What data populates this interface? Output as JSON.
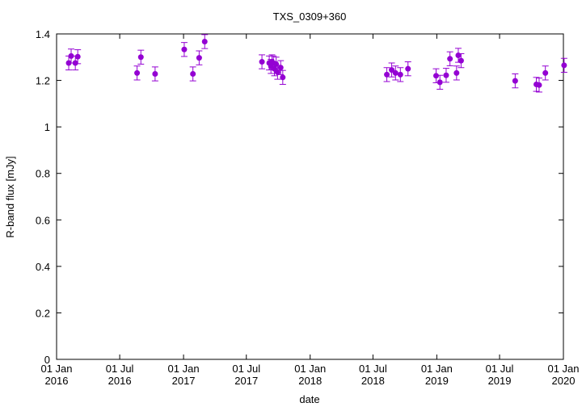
{
  "chart_data": {
    "type": "scatter",
    "title": "TXS_0309+360",
    "xlabel": "date",
    "ylabel": "R-band flux [mJy]",
    "ylim": [
      0,
      1.4
    ],
    "yticks": [
      "0",
      "0.2",
      "0.4",
      "0.6",
      "0.8",
      "1",
      "1.2",
      "1.4"
    ],
    "xlim": [
      "2016-01-01",
      "2020-01-01"
    ],
    "xticks": [
      {
        "date": "2016-01-01",
        "line1": "01 Jan",
        "line2": "2016"
      },
      {
        "date": "2016-07-01",
        "line1": "01 Jul",
        "line2": "2016"
      },
      {
        "date": "2017-01-01",
        "line1": "01 Jan",
        "line2": "2017"
      },
      {
        "date": "2017-07-01",
        "line1": "01 Jul",
        "line2": "2017"
      },
      {
        "date": "2018-01-01",
        "line1": "01 Jan",
        "line2": "2018"
      },
      {
        "date": "2018-07-01",
        "line1": "01 Jul",
        "line2": "2018"
      },
      {
        "date": "2019-01-01",
        "line1": "01 Jan",
        "line2": "2019"
      },
      {
        "date": "2019-07-01",
        "line1": "01 Jul",
        "line2": "2019"
      },
      {
        "date": "2020-01-01",
        "line1": "01 Jan",
        "line2": "2020"
      }
    ],
    "grid": false,
    "legend": "none",
    "marker_color": "#9400d3",
    "series": [
      {
        "points": [
          {
            "x": "2016-02-05",
            "y": 1.275,
            "err": 0.03
          },
          {
            "x": "2016-02-12",
            "y": 1.305,
            "err": 0.03
          },
          {
            "x": "2016-02-24",
            "y": 1.275,
            "err": 0.03
          },
          {
            "x": "2016-03-02",
            "y": 1.302,
            "err": 0.03
          },
          {
            "x": "2016-08-20",
            "y": 1.232,
            "err": 0.03
          },
          {
            "x": "2016-08-31",
            "y": 1.3,
            "err": 0.03
          },
          {
            "x": "2016-10-11",
            "y": 1.228,
            "err": 0.03
          },
          {
            "x": "2017-01-03",
            "y": 1.333,
            "err": 0.03
          },
          {
            "x": "2017-01-28",
            "y": 1.228,
            "err": 0.03
          },
          {
            "x": "2017-02-15",
            "y": 1.297,
            "err": 0.03
          },
          {
            "x": "2017-03-03",
            "y": 1.367,
            "err": 0.03
          },
          {
            "x": "2017-08-15",
            "y": 1.28,
            "err": 0.03
          },
          {
            "x": "2017-09-05",
            "y": 1.275,
            "err": 0.03
          },
          {
            "x": "2017-09-10",
            "y": 1.26,
            "err": 0.03
          },
          {
            "x": "2017-09-13",
            "y": 1.28,
            "err": 0.03
          },
          {
            "x": "2017-09-17",
            "y": 1.275,
            "err": 0.03
          },
          {
            "x": "2017-09-20",
            "y": 1.25,
            "err": 0.03
          },
          {
            "x": "2017-09-25",
            "y": 1.27,
            "err": 0.03
          },
          {
            "x": "2017-09-29",
            "y": 1.235,
            "err": 0.03
          },
          {
            "x": "2017-10-08",
            "y": 1.255,
            "err": 0.03
          },
          {
            "x": "2017-10-14",
            "y": 1.213,
            "err": 0.03
          },
          {
            "x": "2018-08-10",
            "y": 1.225,
            "err": 0.03
          },
          {
            "x": "2018-08-24",
            "y": 1.245,
            "err": 0.03
          },
          {
            "x": "2018-09-04",
            "y": 1.232,
            "err": 0.03
          },
          {
            "x": "2018-09-18",
            "y": 1.225,
            "err": 0.03
          },
          {
            "x": "2018-10-10",
            "y": 1.25,
            "err": 0.03
          },
          {
            "x": "2018-12-30",
            "y": 1.22,
            "err": 0.03
          },
          {
            "x": "2019-01-10",
            "y": 1.192,
            "err": 0.03
          },
          {
            "x": "2019-01-28",
            "y": 1.222,
            "err": 0.03
          },
          {
            "x": "2019-02-08",
            "y": 1.293,
            "err": 0.03
          },
          {
            "x": "2019-02-27",
            "y": 1.232,
            "err": 0.03
          },
          {
            "x": "2019-03-04",
            "y": 1.308,
            "err": 0.03
          },
          {
            "x": "2019-03-12",
            "y": 1.285,
            "err": 0.03
          },
          {
            "x": "2019-08-15",
            "y": 1.198,
            "err": 0.03
          },
          {
            "x": "2019-10-15",
            "y": 1.183,
            "err": 0.03
          },
          {
            "x": "2019-10-23",
            "y": 1.18,
            "err": 0.03
          },
          {
            "x": "2019-11-10",
            "y": 1.232,
            "err": 0.03
          },
          {
            "x": "2020-01-03",
            "y": 1.265,
            "err": 0.03
          }
        ]
      }
    ]
  }
}
